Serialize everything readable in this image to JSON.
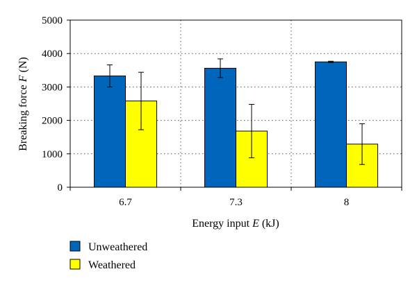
{
  "chart_data": {
    "type": "bar",
    "categories": [
      "6.7",
      "7.3",
      "8"
    ],
    "series": [
      {
        "name": "Unweathered",
        "values": [
          3330,
          3560,
          3750
        ],
        "error": [
          330,
          280,
          20
        ],
        "color": "#0066bb"
      },
      {
        "name": "Weathered",
        "values": [
          2580,
          1680,
          1290
        ],
        "error": [
          860,
          800,
          610
        ],
        "color": "#ffff00"
      }
    ],
    "xlabel": {
      "prefix": "Energy input ",
      "var": "E",
      "suffix": " (kJ)"
    },
    "ylabel": {
      "prefix": "Breaking force ",
      "var": "F",
      "suffix": " (N)"
    },
    "ylim": [
      0,
      5000
    ],
    "yticks": [
      0,
      1000,
      2000,
      3000,
      4000,
      5000
    ],
    "grid": true,
    "legend": "bottom-left"
  }
}
